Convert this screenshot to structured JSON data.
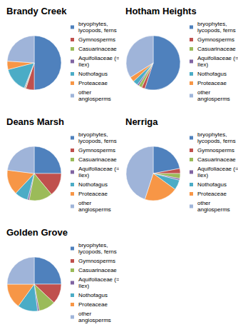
{
  "chart_data": [
    {
      "type": "pie",
      "title": "Brandy Creek",
      "categories": [
        "bryophytes, lycopods, ferns",
        "Gymnosperms",
        "Casuarinaceae",
        "Aquifoliaceae (= Ilex)",
        "Nothofagus",
        "Proteaceae",
        "other angiosperms"
      ],
      "values": [
        50,
        5,
        0.5,
        0.5,
        15,
        5,
        24
      ],
      "colors": [
        "#4f81bd",
        "#c0504d",
        "#9bbb59",
        "#8064a2",
        "#4bacc6",
        "#f79646",
        "#9fb4d9"
      ]
    },
    {
      "type": "pie",
      "title": "Hotham Heights",
      "categories": [
        "bryophytes, lycopods, ferns",
        "Gymnosperms",
        "Casuarinaceae",
        "Aquifoliaceae (= Ilex)",
        "Nothofagus",
        "Proteaceae",
        "other angiosperms"
      ],
      "values": [
        55,
        2,
        2,
        1,
        3,
        3,
        34
      ],
      "colors": [
        "#4f81bd",
        "#c0504d",
        "#9bbb59",
        "#8064a2",
        "#4bacc6",
        "#f79646",
        "#9fb4d9"
      ]
    },
    {
      "type": "pie",
      "title": "Deans Marsh",
      "categories": [
        "bryophytes, lycopods, ferns",
        "Gymnosperms",
        "Casuarinaceae",
        "Aquifoliaceae (= Ilex)",
        "Nothofagus",
        "Proteaceae",
        "other angiosperms"
      ],
      "values": [
        25,
        14,
        14,
        1,
        8,
        15,
        23
      ],
      "colors": [
        "#4f81bd",
        "#c0504d",
        "#9bbb59",
        "#8064a2",
        "#4bacc6",
        "#f79646",
        "#9fb4d9"
      ]
    },
    {
      "type": "pie",
      "title": "Nerriga",
      "categories": [
        "bryophytes, lycopods, ferns",
        "Gymnosperms",
        "Casuarinaceae",
        "Aquifoliaceae (= Ilex)",
        "Nothofagus",
        "Proteaceae",
        "other angiosperms"
      ],
      "values": [
        22,
        3,
        3,
        1,
        6,
        20,
        45
      ],
      "colors": [
        "#4f81bd",
        "#c0504d",
        "#9bbb59",
        "#8064a2",
        "#4bacc6",
        "#f79646",
        "#9fb4d9"
      ]
    },
    {
      "type": "pie",
      "title": "Golden Grove",
      "categories": [
        "bryophytes, lycopods, ferns",
        "Gymnosperms",
        "Casuarinaceae",
        "Aquifoliaceae (= Ilex)",
        "Nothofagus",
        "Proteaceae",
        "other angiosperms"
      ],
      "values": [
        25,
        12,
        10,
        1,
        12,
        15,
        25
      ],
      "colors": [
        "#4f81bd",
        "#c0504d",
        "#9bbb59",
        "#8064a2",
        "#4bacc6",
        "#f79646",
        "#9fb4d9"
      ]
    }
  ]
}
